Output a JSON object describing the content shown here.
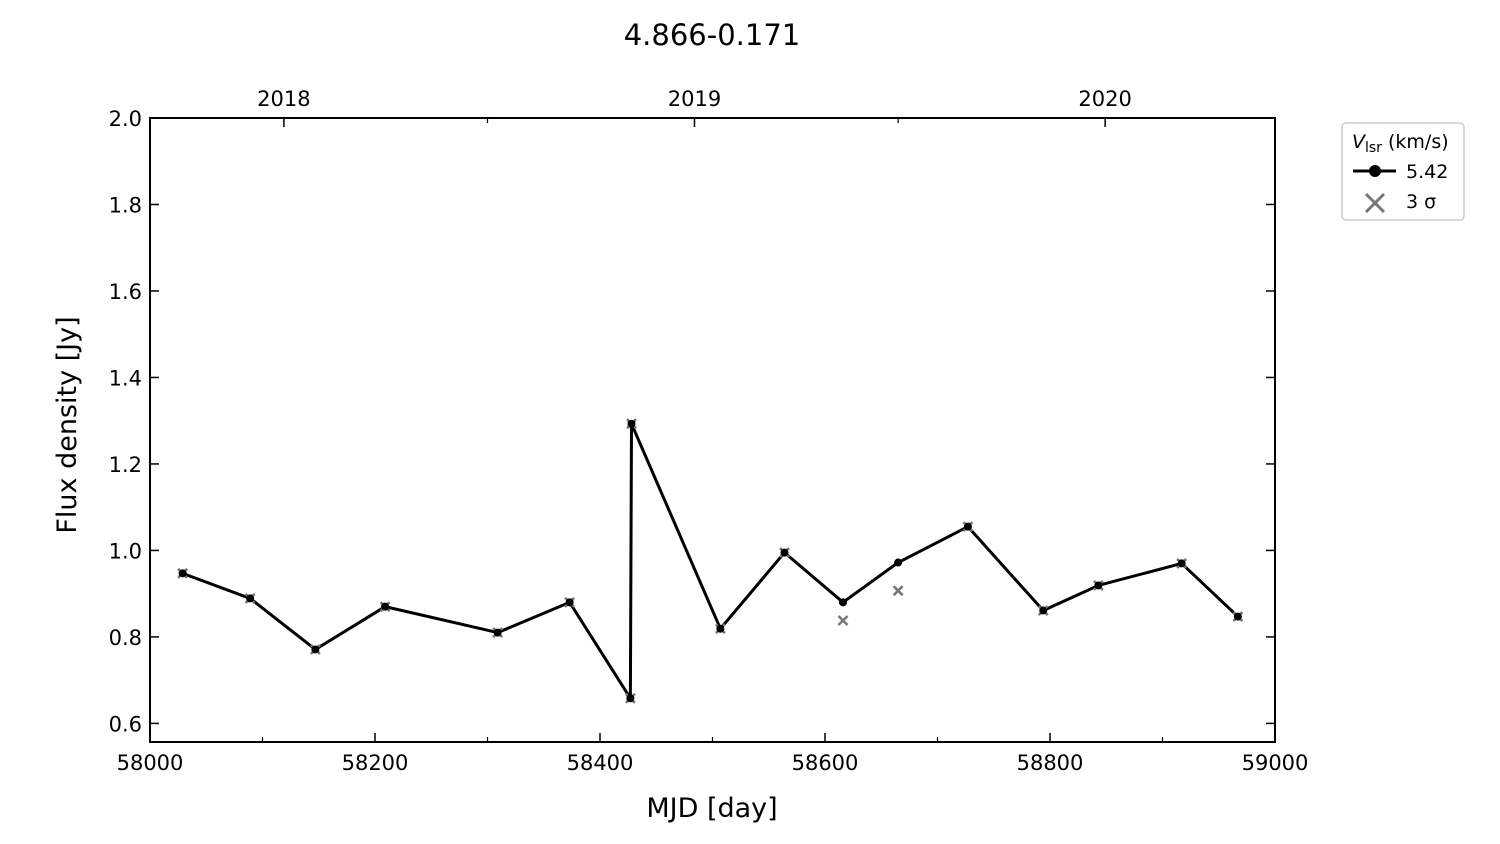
{
  "chart_data": {
    "type": "line",
    "title": "4.866-0.171",
    "xlabel": "MJD [day]",
    "ylabel": "Flux density [Jy]",
    "xlim": [
      58000,
      59000
    ],
    "ylim": [
      0.557,
      2.0
    ],
    "xticks": [
      58000,
      58200,
      58400,
      58600,
      58800,
      59000
    ],
    "xminor": [
      58100,
      58300,
      58500,
      58700,
      58900
    ],
    "yticks": [
      "0.6",
      "0.8",
      "1.0",
      "1.2",
      "1.4",
      "1.6",
      "1.8",
      "2.0"
    ],
    "top_axis": {
      "ticks": [
        {
          "label": "2018",
          "mjd": 58119
        },
        {
          "label": "2019",
          "mjd": 58484
        },
        {
          "label": "2020",
          "mjd": 58849
        }
      ],
      "minor_mjd": [
        58300,
        58665,
        59031
      ]
    },
    "grid": false,
    "legend": {
      "placement": "outside-right-top",
      "title_main": "V",
      "title_sub": "lsr",
      "title_unit": "(km/s)",
      "entries": [
        {
          "label": "5.42",
          "marker": "circle-line"
        },
        {
          "label": "3 σ",
          "marker": "x"
        }
      ]
    },
    "series": [
      {
        "name": "5.42",
        "color": "#000000",
        "x": [
          58029,
          58089,
          58147,
          58209,
          58309,
          58373,
          58427,
          58428,
          58507,
          58564,
          58616,
          58665,
          58727,
          58794,
          58843,
          58917,
          58967
        ],
        "y": [
          0.947,
          0.889,
          0.771,
          0.87,
          0.81,
          0.88,
          0.658,
          1.293,
          0.819,
          0.995,
          0.88,
          0.972,
          1.055,
          0.861,
          0.919,
          0.97,
          0.847
        ]
      },
      {
        "name": "3 σ",
        "color": "#777777",
        "x": [
          58029,
          58089,
          58147,
          58209,
          58309,
          58373,
          58427,
          58428,
          58507,
          58564,
          58616,
          58665,
          58727,
          58794,
          58843,
          58917,
          58967
        ],
        "y": [
          0.947,
          0.889,
          0.771,
          0.87,
          0.81,
          0.88,
          0.658,
          1.293,
          0.819,
          0.995,
          0.838,
          0.907,
          1.055,
          0.861,
          0.919,
          0.97,
          0.847
        ]
      }
    ]
  }
}
